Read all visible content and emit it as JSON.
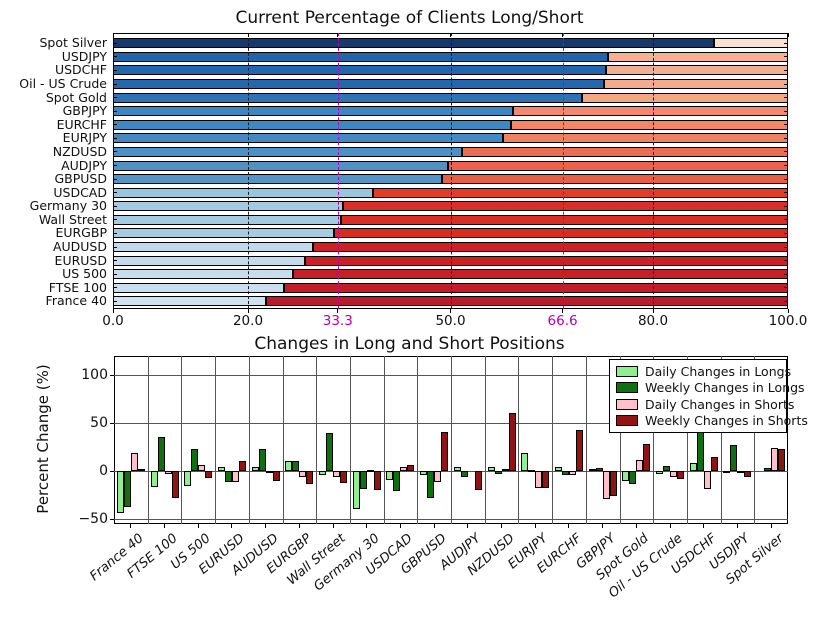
{
  "chart_data": [
    {
      "type": "bar",
      "orientation": "horizontal-stacked",
      "title": "Current Percentage of Clients Long/Short",
      "xlim": [
        0,
        100
      ],
      "x_ticks": [
        {
          "label": "0.0",
          "value": 0,
          "color": "#111111"
        },
        {
          "label": "20.0",
          "value": 20,
          "color": "#111111"
        },
        {
          "label": "33.3",
          "value": 33.3,
          "color": "#b000b0"
        },
        {
          "label": "50.0",
          "value": 50,
          "color": "#111111"
        },
        {
          "label": "66.6",
          "value": 66.6,
          "color": "#b000b0"
        },
        {
          "label": "80.0",
          "value": 80,
          "color": "#111111"
        },
        {
          "label": "100.0",
          "value": 100,
          "color": "#111111"
        }
      ],
      "gridlines": [
        {
          "value": 20,
          "color": "#1a1a1a"
        },
        {
          "value": 33.3,
          "color": "#b000b0"
        },
        {
          "value": 50,
          "color": "#1a1a1a"
        },
        {
          "value": 66.6,
          "color": "#b000b0"
        },
        {
          "value": 80,
          "color": "#1a1a1a"
        }
      ],
      "rows": [
        {
          "label": "Spot Silver",
          "long_pct": 89.0,
          "short_pct": 11.0,
          "long_color": "#123a6d",
          "short_color": "#f9e0d2"
        },
        {
          "label": "USDJPY",
          "long_pct": 73.3,
          "short_pct": 26.7,
          "long_color": "#2166ac",
          "short_color": "#f5b195"
        },
        {
          "label": "USDCHF",
          "long_pct": 73.0,
          "short_pct": 27.0,
          "long_color": "#2267ad",
          "short_color": "#f4ae91"
        },
        {
          "label": "Oil - US Crude",
          "long_pct": 72.8,
          "short_pct": 27.2,
          "long_color": "#2368ae",
          "short_color": "#f4ab8d"
        },
        {
          "label": "Spot Gold",
          "long_pct": 69.5,
          "short_pct": 30.5,
          "long_color": "#2e73b5",
          "short_color": "#f3a685"
        },
        {
          "label": "GBPJPY",
          "long_pct": 59.2,
          "short_pct": 40.8,
          "long_color": "#3f86bf",
          "short_color": "#f18a6a"
        },
        {
          "label": "EURCHF",
          "long_pct": 59.0,
          "short_pct": 41.0,
          "long_color": "#4188c0",
          "short_color": "#f08767"
        },
        {
          "label": "EURJPY",
          "long_pct": 57.8,
          "short_pct": 42.2,
          "long_color": "#438ac1",
          "short_color": "#ef8263"
        },
        {
          "label": "NZDUSD",
          "long_pct": 51.7,
          "short_pct": 48.3,
          "long_color": "#4c91c5",
          "short_color": "#ed6d52"
        },
        {
          "label": "AUDJPY",
          "long_pct": 49.7,
          "short_pct": 50.3,
          "long_color": "#4f93c6",
          "short_color": "#eb6348"
        },
        {
          "label": "GBPUSD",
          "long_pct": 48.8,
          "short_pct": 51.2,
          "long_color": "#5195c7",
          "short_color": "#ea5e43"
        },
        {
          "label": "USDCAD",
          "long_pct": 38.5,
          "short_pct": 61.5,
          "long_color": "#99c5de",
          "short_color": "#e23b2c"
        },
        {
          "label": "Germany 30",
          "long_pct": 34.0,
          "short_pct": 66.0,
          "long_color": "#a3cae1",
          "short_color": "#dc2e24"
        },
        {
          "label": "Wall Street",
          "long_pct": 33.8,
          "short_pct": 66.2,
          "long_color": "#a5cbe2",
          "short_color": "#db2d24"
        },
        {
          "label": "EURGBP",
          "long_pct": 32.8,
          "short_pct": 67.2,
          "long_color": "#a7cce2",
          "short_color": "#da2b23"
        },
        {
          "label": "AUDUSD",
          "long_pct": 29.7,
          "short_pct": 70.3,
          "long_color": "#c1d9ea",
          "short_color": "#ce2126"
        },
        {
          "label": "EURUSD",
          "long_pct": 28.5,
          "short_pct": 71.5,
          "long_color": "#c3dbeb",
          "short_color": "#cd2026"
        },
        {
          "label": "US 500",
          "long_pct": 26.6,
          "short_pct": 73.4,
          "long_color": "#c7ddec",
          "short_color": "#c71f27"
        },
        {
          "label": "FTSE 100",
          "long_pct": 25.3,
          "short_pct": 74.7,
          "long_color": "#c9deee",
          "short_color": "#c41d28"
        },
        {
          "label": "France 40",
          "long_pct": 22.7,
          "short_pct": 77.3,
          "long_color": "#cfe2f0",
          "short_color": "#b91b2a"
        }
      ]
    },
    {
      "type": "bar",
      "orientation": "vertical-grouped",
      "title": "Changes in Long and Short Positions",
      "ylabel": "Percent Change (%)",
      "ylim": [
        -55,
        120
      ],
      "y_ticks": [
        {
          "label": "100",
          "value": 100
        },
        {
          "label": "50",
          "value": 50
        },
        {
          "label": "0",
          "value": 0
        },
        {
          "label": "−50",
          "value": -50
        }
      ],
      "legend_position": "upper right",
      "grid": "on",
      "series": [
        {
          "name": "Daily Changes in Longs",
          "color": "#90ee90"
        },
        {
          "name": "Weekly Changes in Longs",
          "color": "#107010"
        },
        {
          "name": "Daily Changes in Shorts",
          "color": "#ffc0cb"
        },
        {
          "name": "Weekly Changes in Shorts",
          "color": "#911414"
        }
      ],
      "categories": [
        "France 40",
        "FTSE 100",
        "US 500",
        "EURUSD",
        "AUDUSD",
        "EURGBP",
        "Wall Street",
        "Germany 30",
        "USDCAD",
        "GBPUSD",
        "AUDJPY",
        "NZDUSD",
        "EURJPY",
        "EURCHF",
        "GBPJPY",
        "Spot Gold",
        "Oil - US Crude",
        "USDCHF",
        "USDJPY",
        "Spot Silver"
      ],
      "values": [
        [
          -44,
          -37,
          19,
          2
        ],
        [
          -16,
          36,
          -3,
          -28
        ],
        [
          -15,
          23,
          6,
          -7
        ],
        [
          4,
          -11,
          -11,
          11
        ],
        [
          4,
          23,
          -1,
          -10
        ],
        [
          11,
          11,
          -6,
          -13
        ],
        [
          -4,
          40,
          -6,
          -12
        ],
        [
          -39,
          -19,
          1,
          -20
        ],
        [
          -9,
          -21,
          4,
          6
        ],
        [
          -4,
          -28,
          -11,
          41
        ],
        [
          4,
          -6,
          0,
          -20
        ],
        [
          4,
          -3,
          2,
          61
        ],
        [
          19,
          1,
          -18,
          -17
        ],
        [
          4,
          -4,
          -4,
          43
        ],
        [
          2,
          3,
          -29,
          -26
        ],
        [
          -10,
          -13,
          12,
          28
        ],
        [
          -3,
          5,
          -6,
          -8
        ],
        [
          9,
          48,
          -19,
          15
        ],
        [
          -2,
          27,
          -2,
          -6
        ],
        [
          0,
          3,
          24,
          23
        ]
      ]
    }
  ]
}
